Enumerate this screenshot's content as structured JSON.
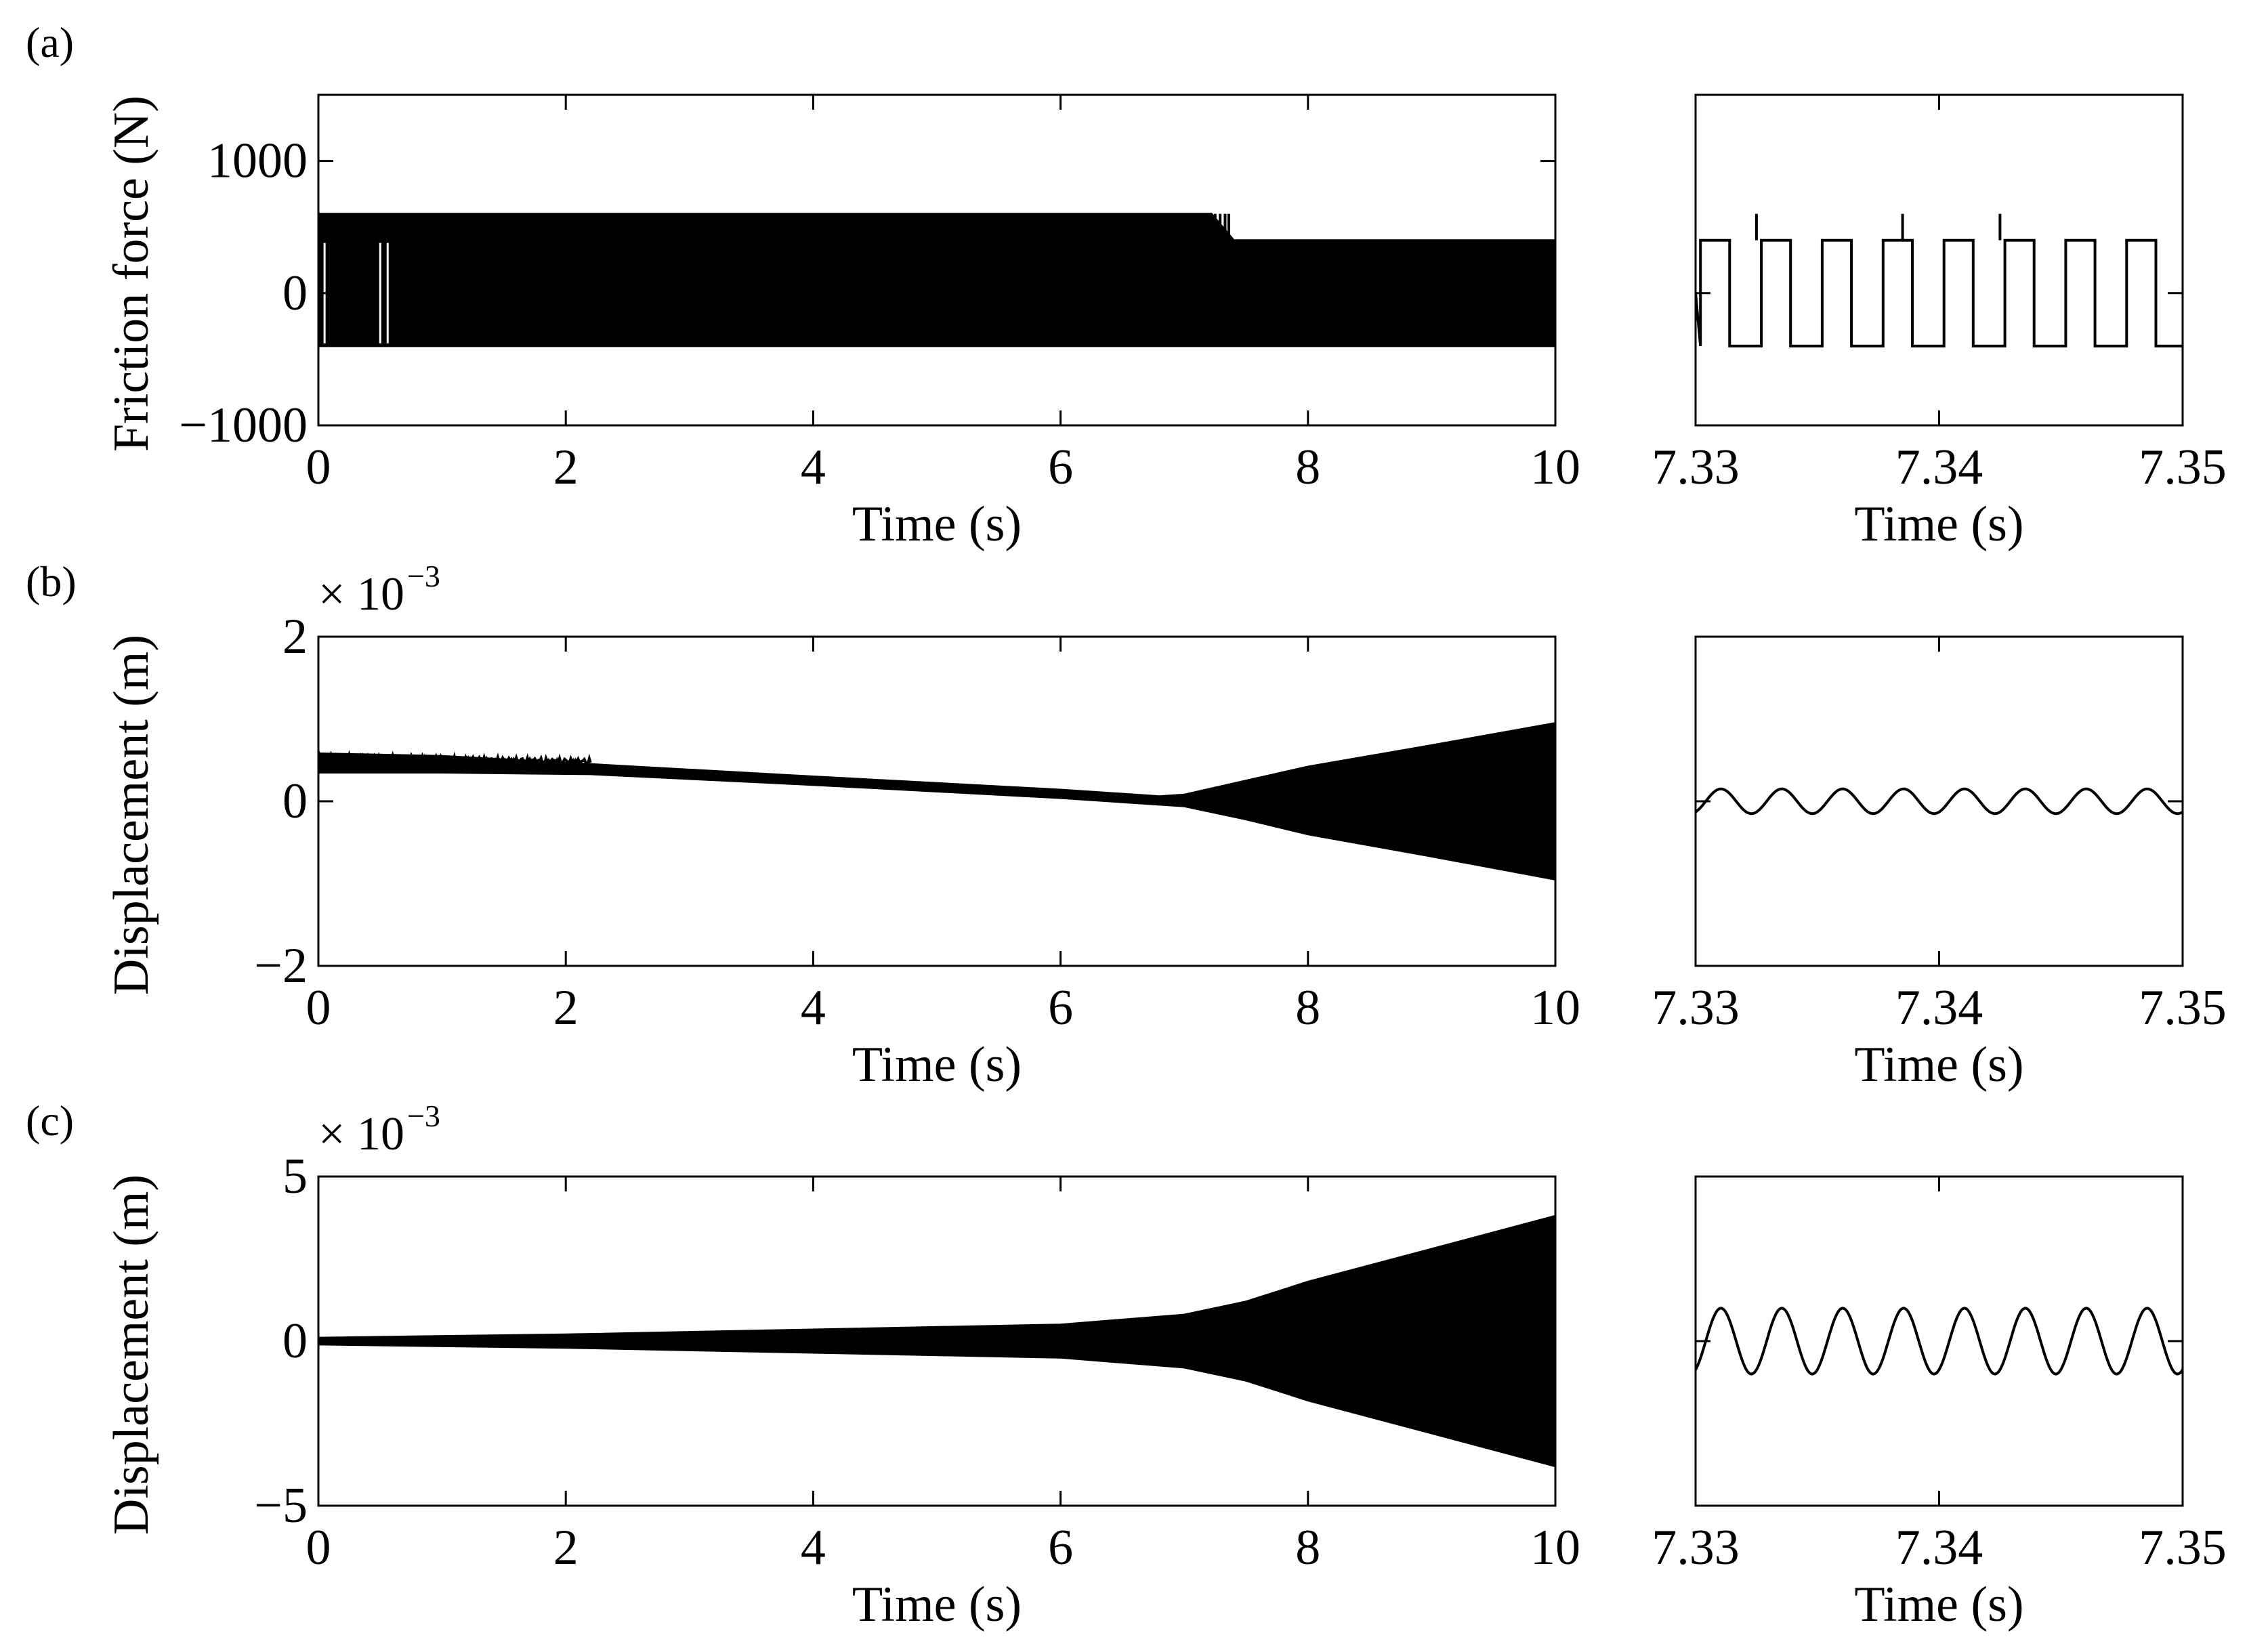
{
  "chart_data": [
    {
      "id": "a",
      "panel_label": "(a)",
      "type": "line",
      "xlabel": "Time (s)",
      "ylabel": "Friction force (N)",
      "xlim": [
        0,
        10
      ],
      "ylim": [
        -1000,
        1500
      ],
      "xticks": [
        0,
        2,
        4,
        6,
        8,
        10
      ],
      "xtick_labels": [
        "0",
        "2",
        "4",
        "6",
        "8",
        "10"
      ],
      "yticks": [
        -1000,
        0,
        1000
      ],
      "ytick_labels": [
        "−1000",
        "0",
        "1000"
      ],
      "series": [
        {
          "name": "friction force envelope",
          "x": [
            0,
            7.2,
            7.22,
            7.4,
            10
          ],
          "upper": [
            600,
            600,
            600,
            400,
            400
          ],
          "lower": [
            -400,
            -400,
            -400,
            -400,
            -400
          ]
        }
      ]
    },
    {
      "id": "a_zoom",
      "type": "line",
      "xlabel": "Time (s)",
      "xlim": [
        7.33,
        7.35
      ],
      "ylim": [
        -1000,
        1500
      ],
      "xticks": [
        7.33,
        7.34,
        7.35
      ],
      "xtick_labels": [
        "7.33",
        "7.34",
        "7.35"
      ],
      "series": [
        {
          "name": "friction force (square wave)",
          "waveform": "square",
          "amplitude_high": 400,
          "amplitude_low": -400,
          "cycles": 8,
          "spike_value": 600,
          "spike_times": [
            7.3325,
            7.3385,
            7.3425
          ]
        }
      ]
    },
    {
      "id": "b",
      "panel_label": "(b)",
      "type": "line",
      "xlabel": "Time (s)",
      "ylabel": "Displacement (m)",
      "scale_label": "× 10",
      "scale_exponent": "−3",
      "xlim": [
        0,
        10
      ],
      "ylim": [
        -2,
        2
      ],
      "xticks": [
        0,
        2,
        4,
        6,
        8,
        10
      ],
      "xtick_labels": [
        "0",
        "2",
        "4",
        "6",
        "8",
        "10"
      ],
      "yticks": [
        -2,
        0,
        2
      ],
      "ytick_labels": [
        "−2",
        "0",
        "2"
      ],
      "series": [
        {
          "name": "displacement envelope",
          "x": [
            0,
            1,
            2.2,
            4,
            6,
            6.8,
            7,
            7.5,
            8,
            9,
            10
          ],
          "upper": [
            0.58,
            0.55,
            0.45,
            0.3,
            0.14,
            0.06,
            0.08,
            0.25,
            0.42,
            0.68,
            0.95
          ],
          "lower": [
            0.35,
            0.35,
            0.33,
            0.2,
            0.04,
            -0.04,
            -0.06,
            -0.22,
            -0.4,
            -0.67,
            -0.95
          ]
        }
      ]
    },
    {
      "id": "b_zoom",
      "type": "line",
      "xlabel": "Time (s)",
      "xlim": [
        7.33,
        7.35
      ],
      "ylim": [
        -2,
        2
      ],
      "xticks": [
        7.33,
        7.34,
        7.35
      ],
      "xtick_labels": [
        "7.33",
        "7.34",
        "7.35"
      ],
      "series": [
        {
          "name": "displacement (sine)",
          "waveform": "sine",
          "amplitude": 0.15,
          "cycles": 8
        }
      ]
    },
    {
      "id": "c",
      "panel_label": "(c)",
      "type": "line",
      "xlabel": "Time (s)",
      "ylabel": "Displacement (m)",
      "scale_label": "× 10",
      "scale_exponent": "−3",
      "xlim": [
        0,
        10
      ],
      "ylim": [
        -5,
        5
      ],
      "xticks": [
        0,
        2,
        4,
        6,
        8,
        10
      ],
      "xtick_labels": [
        "0",
        "2",
        "4",
        "6",
        "8",
        "10"
      ],
      "yticks": [
        -5,
        0,
        5
      ],
      "ytick_labels": [
        "−5",
        "0",
        "5"
      ],
      "series": [
        {
          "name": "displacement envelope",
          "x": [
            0,
            2,
            4,
            6,
            7,
            7.5,
            8,
            9,
            10
          ],
          "upper": [
            0.1,
            0.2,
            0.35,
            0.5,
            0.8,
            1.2,
            1.8,
            2.8,
            3.8
          ],
          "lower": [
            -0.1,
            -0.2,
            -0.35,
            -0.5,
            -0.8,
            -1.2,
            -1.8,
            -2.8,
            -3.8
          ]
        }
      ]
    },
    {
      "id": "c_zoom",
      "type": "line",
      "xlabel": "Time (s)",
      "xlim": [
        7.33,
        7.35
      ],
      "ylim": [
        -5,
        5
      ],
      "xticks": [
        7.33,
        7.34,
        7.35
      ],
      "xtick_labels": [
        "7.33",
        "7.34",
        "7.35"
      ],
      "series": [
        {
          "name": "displacement (sine)",
          "waveform": "sine",
          "amplitude": 1.0,
          "cycles": 8
        }
      ]
    }
  ]
}
